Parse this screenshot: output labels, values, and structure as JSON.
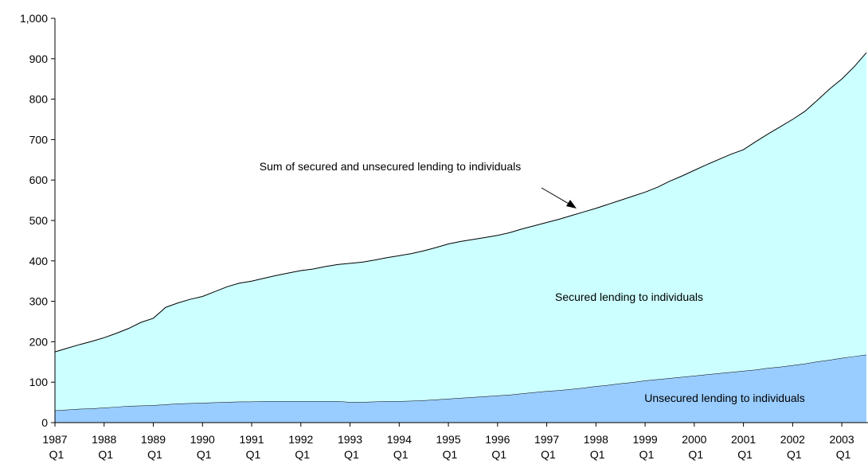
{
  "chart_data": {
    "type": "stacked_area",
    "annotations": [
      "Sum of secured and unsecured lending to individuals"
    ],
    "categories": [
      "1987 Q1",
      null,
      null,
      null,
      "1988 Q1",
      null,
      null,
      null,
      "1989 Q1",
      null,
      null,
      null,
      "1990 Q1",
      null,
      null,
      null,
      "1991 Q1",
      null,
      null,
      null,
      "1992 Q1",
      null,
      null,
      null,
      "1993 Q1",
      null,
      null,
      null,
      "1994 Q1",
      null,
      null,
      null,
      "1995 Q1",
      null,
      null,
      null,
      "1996 Q1",
      null,
      null,
      null,
      "1997 Q1",
      null,
      null,
      null,
      "1998 Q1",
      null,
      null,
      null,
      "1999 Q1",
      null,
      null,
      null,
      "2000 Q1",
      null,
      null,
      null,
      "2001 Q1",
      null,
      null,
      null,
      "2002 Q1",
      null,
      null,
      null,
      "2003 Q1",
      null,
      null
    ],
    "series": [
      {
        "name": "Unsecured lending to individuals",
        "color": "#99ccff",
        "values": [
          30,
          32,
          34,
          35,
          37,
          39,
          41,
          42,
          43,
          45,
          47,
          48,
          49,
          50,
          51,
          52,
          52,
          53,
          53,
          53,
          53,
          53,
          53,
          53,
          51,
          51,
          52,
          53,
          53,
          54,
          55,
          57,
          59,
          61,
          63,
          65,
          67,
          69,
          72,
          75,
          78,
          80,
          83,
          86,
          90,
          93,
          97,
          100,
          104,
          107,
          110,
          113,
          116,
          119,
          122,
          125,
          128,
          131,
          135,
          138,
          142,
          146,
          151,
          155,
          160,
          164,
          168
        ]
      },
      {
        "name": "Secured lending to individuals",
        "color": "#ccffff",
        "values": [
          145,
          152,
          159,
          166,
          173,
          182,
          192,
          206,
          215,
          240,
          249,
          257,
          263,
          274,
          285,
          293,
          298,
          304,
          311,
          317,
          323,
          327,
          333,
          338,
          343,
          346,
          350,
          355,
          360,
          364,
          370,
          376,
          383,
          387,
          390,
          393,
          396,
          401,
          407,
          412,
          417,
          423,
          429,
          435,
          440,
          447,
          453,
          460,
          466,
          475,
          487,
          497,
          508,
          519,
          529,
          539,
          547,
          564,
          579,
          594,
          608,
          624,
          646,
          670,
          690,
          716,
          747
        ]
      }
    ],
    "ylim": [
      0,
      1000
    ],
    "yticks": [
      0,
      100,
      200,
      300,
      400,
      500,
      600,
      700,
      800,
      900,
      {
        "value": 1000,
        "label": "1,000"
      }
    ],
    "grid": false
  }
}
